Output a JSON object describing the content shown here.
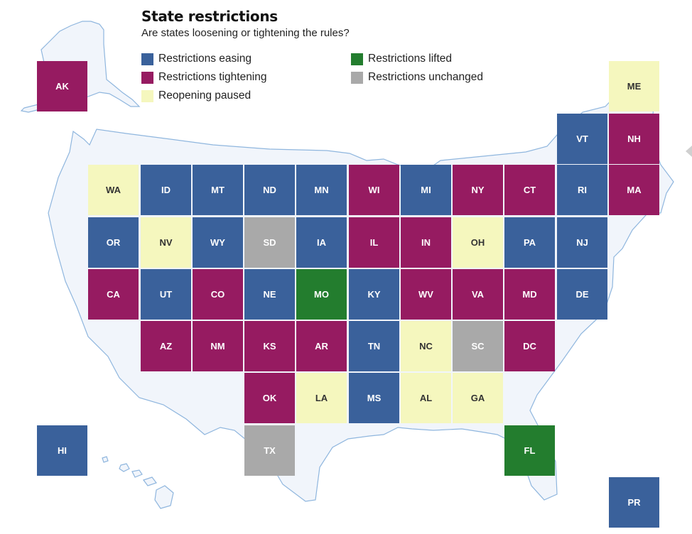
{
  "header": {
    "title": "State restrictions",
    "subtitle": "Are states loosening or tightening the rules?"
  },
  "legend": {
    "items": [
      {
        "key": "easing",
        "label": "Restrictions easing"
      },
      {
        "key": "tightening",
        "label": "Restrictions tightening"
      },
      {
        "key": "paused",
        "label": "Reopening paused"
      },
      {
        "key": "lifted",
        "label": "Restrictions lifted"
      },
      {
        "key": "unchanged",
        "label": "Restrictions unchanged"
      }
    ]
  },
  "colors": {
    "easing": "#3a619b",
    "tightening": "#961b61",
    "paused": "#f5f7be",
    "lifted": "#237d2e",
    "unchanged": "#a9a9a9",
    "map_fill": "#f1f5fb",
    "map_stroke": "#8fb6de"
  },
  "states": [
    {
      "code": "AK",
      "status": "tightening"
    },
    {
      "code": "ME",
      "status": "paused"
    },
    {
      "code": "VT",
      "status": "easing"
    },
    {
      "code": "NH",
      "status": "tightening"
    },
    {
      "code": "WA",
      "status": "paused"
    },
    {
      "code": "ID",
      "status": "easing"
    },
    {
      "code": "MT",
      "status": "easing"
    },
    {
      "code": "ND",
      "status": "easing"
    },
    {
      "code": "MN",
      "status": "easing"
    },
    {
      "code": "WI",
      "status": "tightening"
    },
    {
      "code": "MI",
      "status": "easing"
    },
    {
      "code": "NY",
      "status": "tightening"
    },
    {
      "code": "CT",
      "status": "tightening"
    },
    {
      "code": "RI",
      "status": "easing"
    },
    {
      "code": "MA",
      "status": "tightening"
    },
    {
      "code": "OR",
      "status": "easing"
    },
    {
      "code": "NV",
      "status": "paused"
    },
    {
      "code": "WY",
      "status": "easing"
    },
    {
      "code": "SD",
      "status": "unchanged"
    },
    {
      "code": "IA",
      "status": "easing"
    },
    {
      "code": "IL",
      "status": "tightening"
    },
    {
      "code": "IN",
      "status": "tightening"
    },
    {
      "code": "OH",
      "status": "paused"
    },
    {
      "code": "PA",
      "status": "easing"
    },
    {
      "code": "NJ",
      "status": "easing"
    },
    {
      "code": "CA",
      "status": "tightening"
    },
    {
      "code": "UT",
      "status": "easing"
    },
    {
      "code": "CO",
      "status": "tightening"
    },
    {
      "code": "NE",
      "status": "easing"
    },
    {
      "code": "MO",
      "status": "lifted"
    },
    {
      "code": "KY",
      "status": "easing"
    },
    {
      "code": "WV",
      "status": "tightening"
    },
    {
      "code": "VA",
      "status": "tightening"
    },
    {
      "code": "MD",
      "status": "tightening"
    },
    {
      "code": "DE",
      "status": "easing"
    },
    {
      "code": "AZ",
      "status": "tightening"
    },
    {
      "code": "NM",
      "status": "tightening"
    },
    {
      "code": "KS",
      "status": "tightening"
    },
    {
      "code": "AR",
      "status": "tightening"
    },
    {
      "code": "TN",
      "status": "easing"
    },
    {
      "code": "NC",
      "status": "paused"
    },
    {
      "code": "SC",
      "status": "unchanged"
    },
    {
      "code": "DC",
      "status": "tightening"
    },
    {
      "code": "OK",
      "status": "tightening"
    },
    {
      "code": "LA",
      "status": "paused"
    },
    {
      "code": "MS",
      "status": "easing"
    },
    {
      "code": "AL",
      "status": "paused"
    },
    {
      "code": "GA",
      "status": "paused"
    },
    {
      "code": "HI",
      "status": "easing"
    },
    {
      "code": "TX",
      "status": "unchanged"
    },
    {
      "code": "FL",
      "status": "lifted"
    },
    {
      "code": "PR",
      "status": "easing"
    }
  ]
}
